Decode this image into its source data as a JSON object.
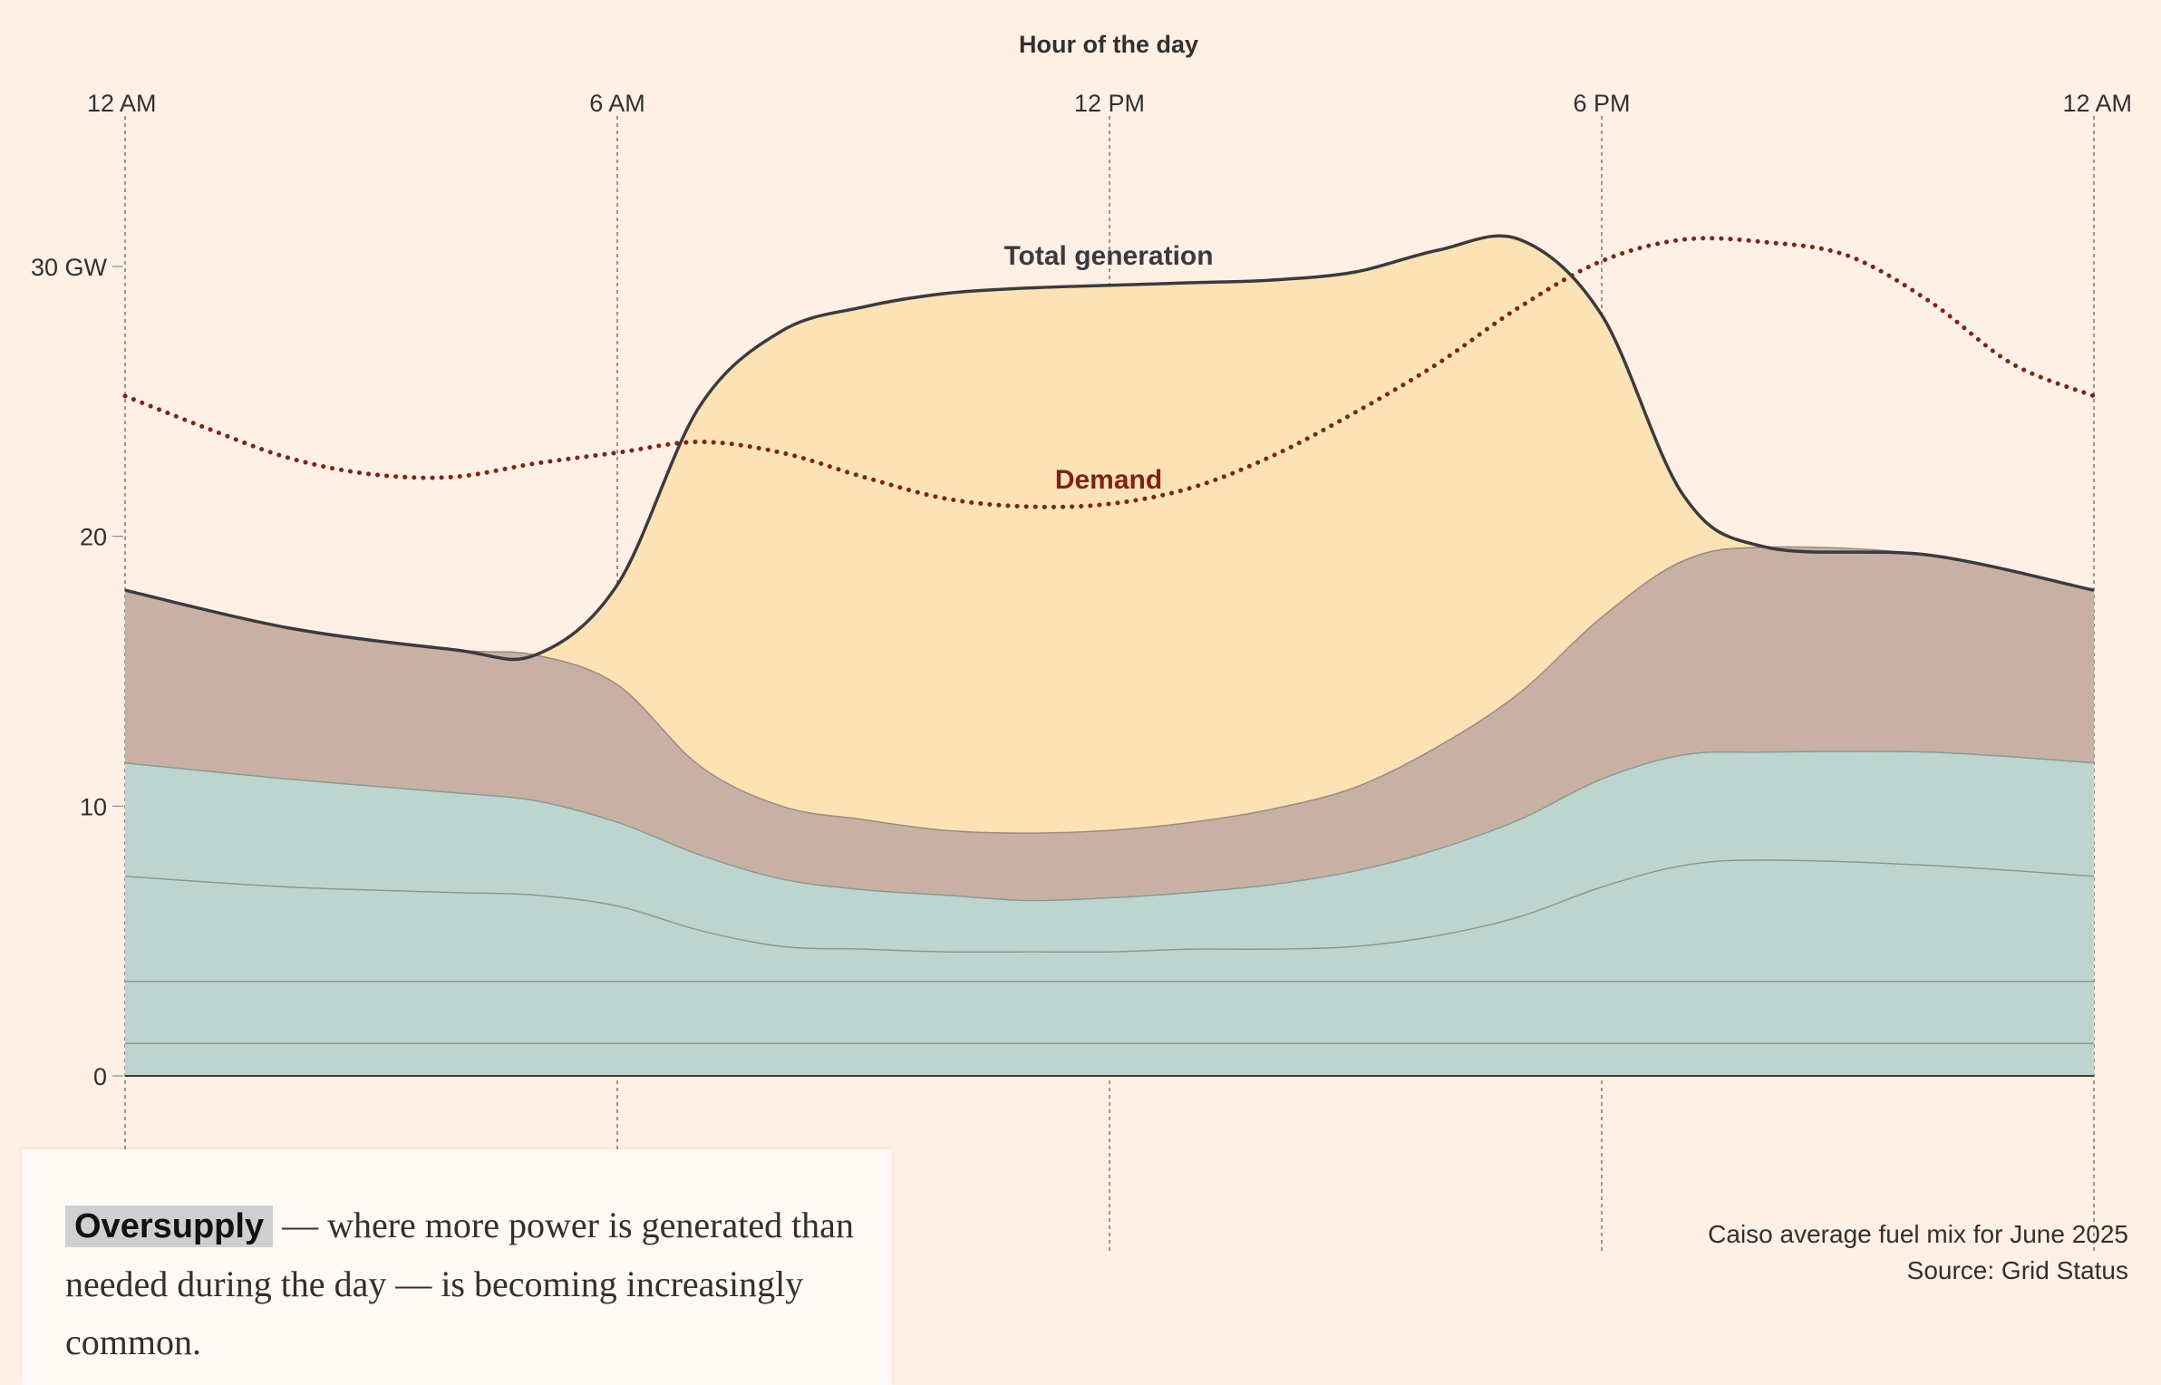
{
  "chart_data": {
    "type": "area",
    "title": "Hour of the day",
    "x_axis": {
      "label": "Hour of the day",
      "range": [
        0,
        24
      ],
      "ticks": [
        {
          "value": 0,
          "label": "12 AM"
        },
        {
          "value": 6,
          "label": "6 AM"
        },
        {
          "value": 12,
          "label": "12 PM"
        },
        {
          "value": 18,
          "label": "6 PM"
        },
        {
          "value": 24,
          "label": "12 AM"
        }
      ]
    },
    "y_axis": {
      "range": [
        0,
        30
      ],
      "ticks": [
        {
          "value": 0,
          "label": "0"
        },
        {
          "value": 10,
          "label": "10"
        },
        {
          "value": 20,
          "label": "20"
        },
        {
          "value": 30,
          "label": "30 GW"
        }
      ]
    },
    "x": [
      0,
      2,
      4,
      5,
      6,
      7,
      8,
      9,
      10,
      11,
      12,
      13,
      14,
      15,
      16,
      17,
      18,
      19,
      20,
      22,
      24
    ],
    "stack_layers": [
      {
        "name": "layer-1",
        "color": "#bed5cf",
        "values": [
          1.2,
          1.2,
          1.2,
          1.2,
          1.2,
          1.2,
          1.2,
          1.2,
          1.2,
          1.2,
          1.2,
          1.2,
          1.2,
          1.2,
          1.2,
          1.2,
          1.2,
          1.2,
          1.2,
          1.2,
          1.2
        ]
      },
      {
        "name": "layer-2",
        "color": "#bed5cf",
        "values": [
          3.5,
          3.5,
          3.5,
          3.5,
          3.5,
          3.5,
          3.5,
          3.5,
          3.5,
          3.5,
          3.5,
          3.5,
          3.5,
          3.5,
          3.5,
          3.5,
          3.5,
          3.5,
          3.5,
          3.5,
          3.5
        ]
      },
      {
        "name": "layer-3",
        "color": "#bed5cf",
        "values": [
          7.4,
          7.0,
          6.8,
          6.7,
          6.3,
          5.4,
          4.8,
          4.7,
          4.6,
          4.6,
          4.6,
          4.7,
          4.7,
          4.8,
          5.2,
          5.9,
          7.0,
          7.8,
          8.0,
          7.8,
          7.4
        ]
      },
      {
        "name": "layer-4",
        "color": "#bed5cf",
        "values": [
          11.6,
          11.0,
          10.5,
          10.2,
          9.4,
          8.2,
          7.3,
          6.9,
          6.7,
          6.5,
          6.6,
          6.8,
          7.1,
          7.6,
          8.4,
          9.5,
          11.0,
          11.9,
          12.0,
          12.0,
          11.6
        ]
      },
      {
        "name": "layer-5",
        "color": "#c8b0a4",
        "values": [
          18.0,
          16.6,
          15.8,
          15.6,
          14.5,
          11.5,
          10.0,
          9.5,
          9.1,
          9.0,
          9.1,
          9.4,
          9.9,
          10.7,
          12.2,
          14.2,
          17.0,
          19.1,
          19.6,
          19.3,
          18.0
        ]
      },
      {
        "name": "total-generation",
        "color": "#fde2b6",
        "values": [
          18.0,
          16.6,
          15.8,
          15.6,
          18.2,
          24.8,
          27.6,
          28.5,
          29.0,
          29.2,
          29.3,
          29.4,
          29.5,
          29.8,
          30.6,
          31.0,
          28.2,
          21.5,
          19.6,
          19.3,
          18.0
        ]
      }
    ],
    "demand": {
      "name": "Demand",
      "color": "#7d2416",
      "x": [
        0,
        1,
        2,
        3,
        4,
        5,
        6,
        7,
        8,
        9,
        10,
        11,
        12,
        13,
        14,
        15,
        16,
        17,
        18,
        19,
        20,
        21,
        22,
        23,
        24
      ],
      "values": [
        25.2,
        24.0,
        22.9,
        22.3,
        22.2,
        22.7,
        23.1,
        23.5,
        23.1,
        22.2,
        21.4,
        21.1,
        21.2,
        21.8,
        23.0,
        24.6,
        26.4,
        28.5,
        30.2,
        31.0,
        30.9,
        30.4,
        28.7,
        26.4,
        25.2
      ]
    },
    "annotations": {
      "total_generation": "Total generation",
      "demand": "Demand"
    }
  },
  "caption": {
    "highlight": "Oversupply",
    "text": "— where more power is generated than needed during the day — is becoming increasingly common."
  },
  "source": {
    "line1": "Caiso average fuel mix for June 2025",
    "line2": "Source: Grid Status"
  },
  "colors": {
    "background": "#fff0e6",
    "solar": "#fde2b6",
    "gas": "#c8b0a4",
    "base": "#bed5cf",
    "demand": "#7d2416",
    "total_line": "#3b3a3c"
  }
}
